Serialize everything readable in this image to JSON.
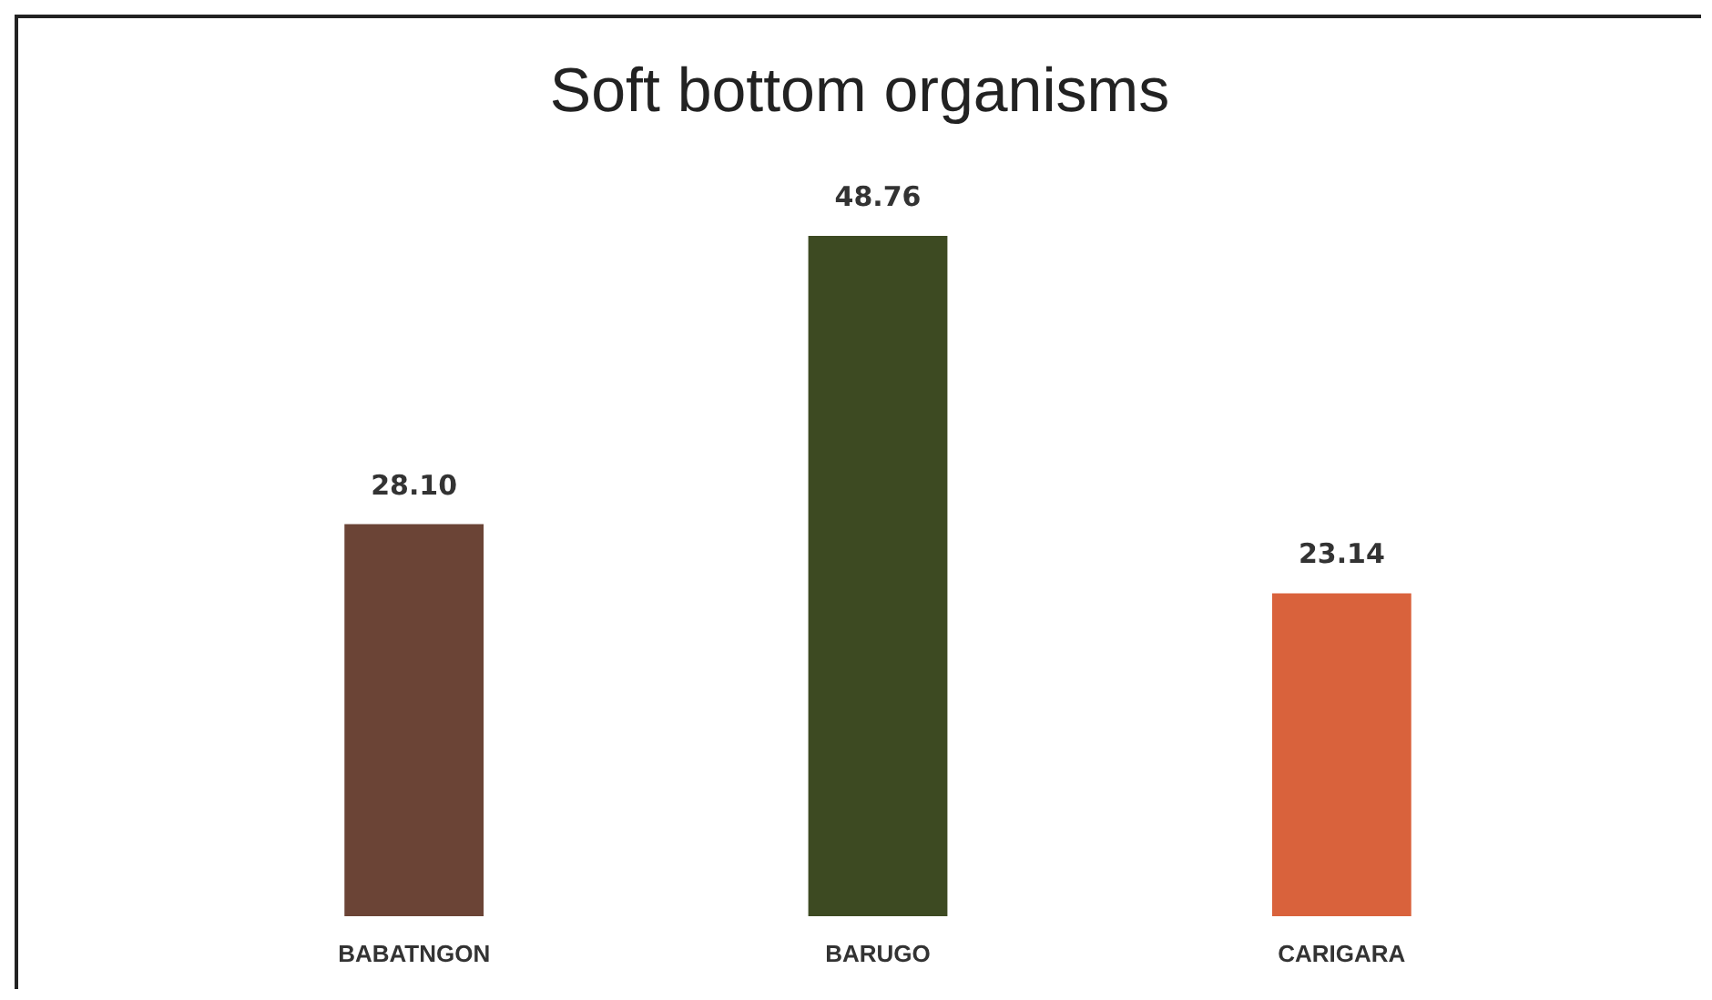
{
  "chart_data": {
    "type": "bar",
    "title": "Soft bottom organisms",
    "categories": [
      "BABATNGON",
      "BARUGO",
      "CARIGARA"
    ],
    "values": [
      28.1,
      48.76,
      23.14
    ],
    "value_labels": [
      "28.10",
      "48.76",
      "23.14"
    ],
    "colors": [
      "#6b4436",
      "#3d4a22",
      "#d9623c"
    ]
  }
}
